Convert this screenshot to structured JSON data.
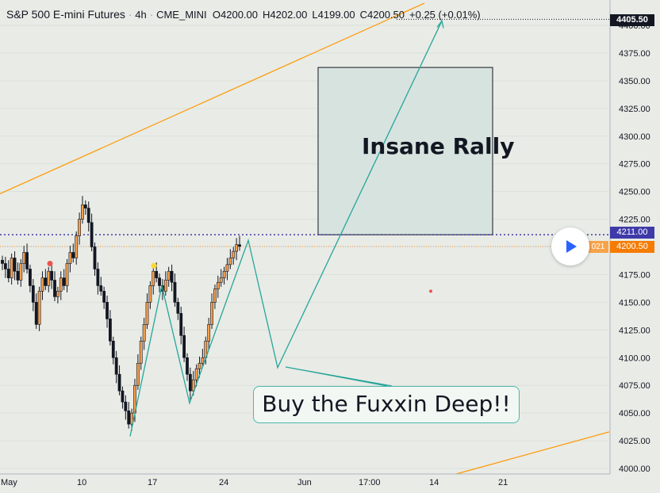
{
  "header": {
    "symbol": "S&P 500 E-mini Futures",
    "interval": "4h",
    "exchange": "CME_MINI",
    "open_key": "O",
    "open_val": "4200.00",
    "high_key": "H",
    "high_val": "4202.00",
    "low_key": "L",
    "low_val": "4199.00",
    "close_key": "C",
    "close_val": "4200.50",
    "change": "+0.25 (+0.01%)"
  },
  "price_tags": {
    "top": "4405.50",
    "blue_line": "4211.00",
    "last_price": "4200.50",
    "countdown_fragment": "021"
  },
  "annotations": {
    "rally_text": "Insane Rally",
    "callout_text": "Buy the Fuxxin Deep!!"
  },
  "colors": {
    "background": "#e8ebe6",
    "up": "#f6a04d",
    "down": "#131722",
    "teal": "#26a69a",
    "orange_line": "#ff9800",
    "blue_dotted": "#3e3aa8",
    "rally_box": "#d7e3df"
  },
  "chart_data": {
    "type": "candlestick",
    "symbol": "S&P 500 E-mini Futures",
    "interval": "4h",
    "y_axis": {
      "range": [
        4000,
        4405.5
      ],
      "ticks": [
        4000,
        4025,
        4050,
        4075,
        4100,
        4125,
        4150,
        4175,
        4200,
        4225,
        4250,
        4275,
        4300,
        4325,
        4350,
        4375,
        4400
      ],
      "tick_labels": [
        "4000.00",
        "4025.00",
        "4050.00",
        "4075.00",
        "4100.00",
        "4125.00",
        "4150.00",
        "4175.00",
        "4200.00",
        "4225.00",
        "4250.00",
        "4275.00",
        "4300.00",
        "4325.00",
        "4350.00",
        "4375.00",
        "4400.00"
      ]
    },
    "x_axis": {
      "tick_labels": [
        "May",
        "10",
        "17",
        "24",
        "Jun",
        "17:00",
        "14",
        "21"
      ]
    },
    "close_path": [
      4185,
      4180,
      4172,
      4190,
      4178,
      4170,
      4185,
      4195,
      4180,
      4165,
      4150,
      4130,
      4160,
      4172,
      4165,
      4178,
      4170,
      4155,
      4160,
      4172,
      4165,
      4185,
      4195,
      4190,
      4210,
      4225,
      4238,
      4235,
      4222,
      4200,
      4180,
      4165,
      4160,
      4150,
      4135,
      4115,
      4100,
      4085,
      4070,
      4060,
      4052,
      4040,
      4050,
      4075,
      4095,
      4115,
      4130,
      4150,
      4165,
      4178,
      4172,
      4165,
      4160,
      4170,
      4178,
      4168,
      4150,
      4140,
      4120,
      4100,
      4085,
      4070,
      4080,
      4090,
      4095,
      4100,
      4115,
      4130,
      4150,
      4162,
      4168,
      4172,
      4178,
      4184,
      4190,
      4196,
      4202,
      4200.5
    ],
    "projection_path": [
      {
        "time": "May 14",
        "price": 4029
      },
      {
        "time": "May 17",
        "price": 4165
      },
      {
        "time": "May 19",
        "price": 4059
      },
      {
        "time": "May 26",
        "price": 4206
      },
      {
        "time": "May 29",
        "price": 4091
      },
      {
        "time": "Jun 14",
        "price": 4404
      }
    ],
    "levels": {
      "blue_dotted": 4211.0,
      "last_price": 4200.5,
      "top_dotted": 4405.5
    },
    "rally_box": {
      "price_low": 4211,
      "price_high": 4362
    },
    "markers": [
      {
        "price": 4185,
        "color": "#ef5350"
      },
      {
        "price": 4183,
        "color": "#fdd835"
      },
      {
        "price": 4160,
        "color": "#ef5350"
      }
    ],
    "trend_lines": [
      {
        "name": "upper-channel",
        "start_price": 4248,
        "end_price": 4420
      },
      {
        "name": "lower-channel",
        "start_price": 3995,
        "end_price": 4033
      }
    ]
  }
}
